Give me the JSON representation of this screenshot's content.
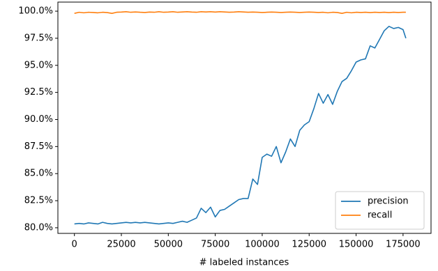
{
  "chart_data": {
    "type": "line",
    "xlabel": "# labeled instances",
    "x": [
      0,
      2500,
      5000,
      7500,
      10000,
      12500,
      15000,
      17500,
      20000,
      22500,
      25000,
      27500,
      30000,
      32500,
      35000,
      37500,
      40000,
      42500,
      45000,
      47500,
      50000,
      52500,
      55000,
      57500,
      60000,
      62500,
      65000,
      67500,
      70000,
      72500,
      75000,
      77500,
      80000,
      82500,
      85000,
      87500,
      90000,
      92500,
      95000,
      97500,
      100000,
      102500,
      105000,
      107500,
      110000,
      112500,
      115000,
      117500,
      120000,
      122500,
      125000,
      127500,
      130000,
      132500,
      135000,
      137500,
      140000,
      142500,
      145000,
      147500,
      150000,
      152500,
      155000,
      157500,
      160000,
      162500,
      165000,
      167500,
      170000,
      172500,
      175000,
      176500
    ],
    "series": [
      {
        "name": "precision",
        "color": "#1f77b4",
        "values": [
          80.35,
          80.4,
          80.35,
          80.45,
          80.4,
          80.35,
          80.5,
          80.4,
          80.35,
          80.4,
          80.45,
          80.5,
          80.45,
          80.5,
          80.45,
          80.5,
          80.45,
          80.4,
          80.35,
          80.4,
          80.45,
          80.4,
          80.5,
          80.6,
          80.5,
          80.7,
          80.9,
          81.8,
          81.4,
          81.9,
          81.0,
          81.6,
          81.7,
          82.0,
          82.3,
          82.6,
          82.7,
          82.7,
          84.5,
          84.0,
          86.5,
          86.8,
          86.6,
          87.5,
          86.0,
          87.0,
          88.2,
          87.5,
          89.0,
          89.5,
          89.8,
          91.0,
          92.4,
          91.5,
          92.3,
          91.4,
          92.6,
          93.5,
          93.8,
          94.5,
          95.3,
          95.5,
          95.6,
          96.8,
          96.6,
          97.4,
          98.2,
          98.6,
          98.4,
          98.5,
          98.3,
          97.5
        ]
      },
      {
        "name": "recall",
        "color": "#ff7f0e",
        "values": [
          99.8,
          99.9,
          99.85,
          99.9,
          99.88,
          99.85,
          99.9,
          99.87,
          99.8,
          99.9,
          99.92,
          99.95,
          99.9,
          99.93,
          99.9,
          99.88,
          99.92,
          99.9,
          99.95,
          99.9,
          99.92,
          99.95,
          99.9,
          99.93,
          99.95,
          99.92,
          99.9,
          99.95,
          99.93,
          99.95,
          99.92,
          99.95,
          99.93,
          99.9,
          99.92,
          99.95,
          99.93,
          99.9,
          99.92,
          99.9,
          99.88,
          99.9,
          99.92,
          99.9,
          99.88,
          99.9,
          99.92,
          99.9,
          99.88,
          99.9,
          99.92,
          99.9,
          99.88,
          99.9,
          99.85,
          99.9,
          99.88,
          99.8,
          99.9,
          99.85,
          99.9,
          99.88,
          99.9,
          99.87,
          99.9,
          99.88,
          99.9,
          99.87,
          99.9,
          99.88,
          99.9,
          99.9
        ]
      }
    ],
    "xlim": [
      -8800,
      189900
    ],
    "ylim": [
      79.48,
      100.84
    ],
    "xticks": [
      0,
      25000,
      50000,
      75000,
      100000,
      125000,
      150000,
      175000
    ],
    "yticks": [
      {
        "value": 80,
        "label": "80.0%"
      },
      {
        "value": 82.5,
        "label": "82.5%"
      },
      {
        "value": 85,
        "label": "85.0%"
      },
      {
        "value": 87.5,
        "label": "87.5%"
      },
      {
        "value": 90,
        "label": "90.0%"
      },
      {
        "value": 92.5,
        "label": "92.5%"
      },
      {
        "value": 95,
        "label": "95.0%"
      },
      {
        "value": 97.5,
        "label": "97.5%"
      },
      {
        "value": 100,
        "label": "100.0%"
      }
    ],
    "legend": "lower right"
  }
}
